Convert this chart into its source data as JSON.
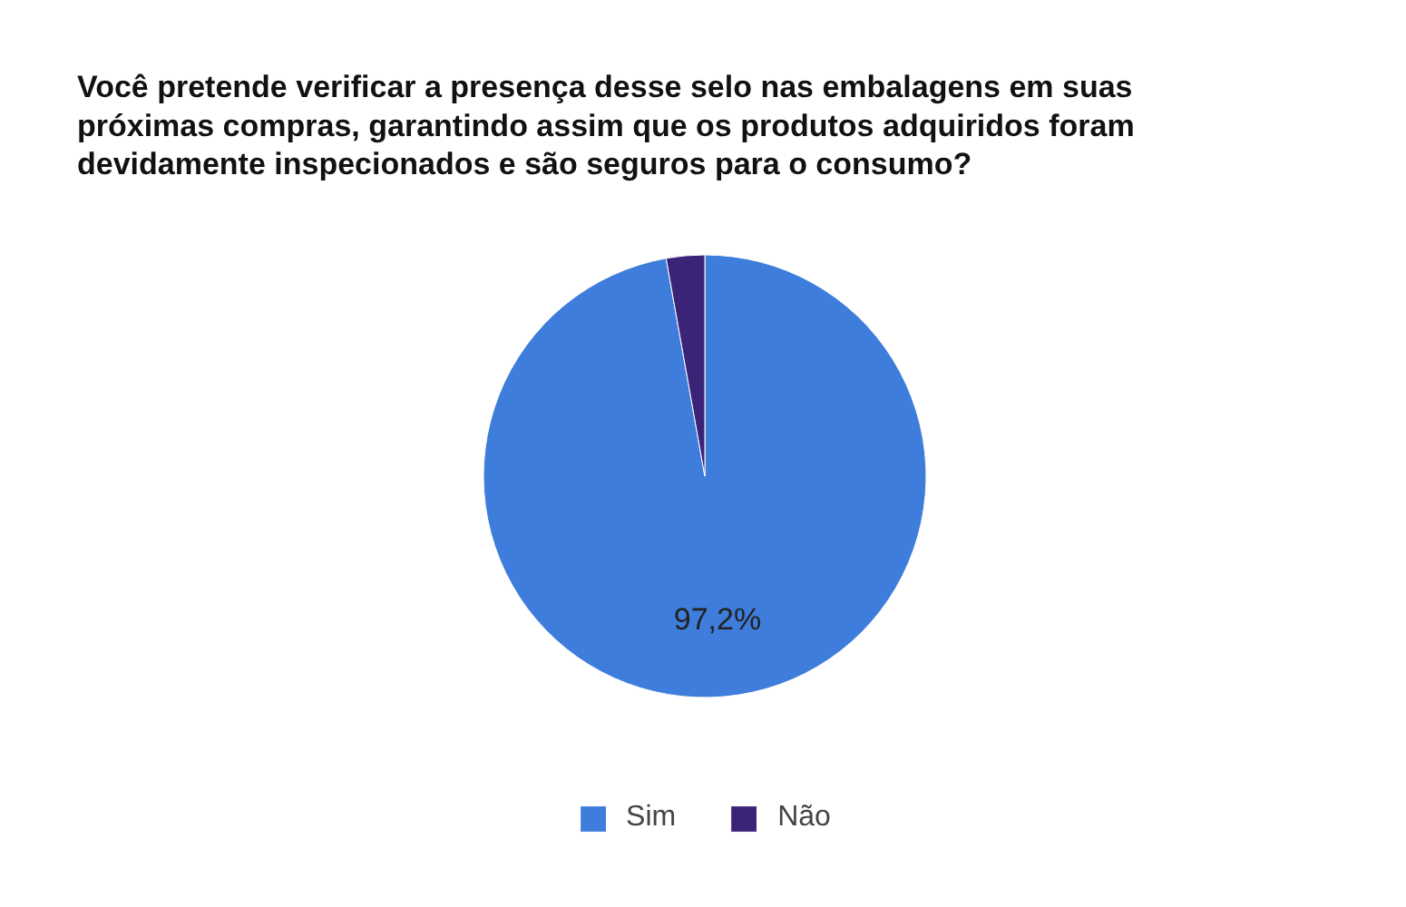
{
  "chart_data": {
    "type": "pie",
    "title": "Você pretende verificar a presença desse selo nas embalagens em suas próximas compras, garantindo assim que os produtos adquiridos foram devidamente inspecionados e são seguros para o consumo?",
    "categories": [
      "Sim",
      "Não"
    ],
    "values": [
      97.2,
      2.8
    ],
    "colors": [
      "#3e7ddb",
      "#3b2378"
    ],
    "value_labels": [
      "97,2%",
      null
    ],
    "legend": "bottom"
  }
}
